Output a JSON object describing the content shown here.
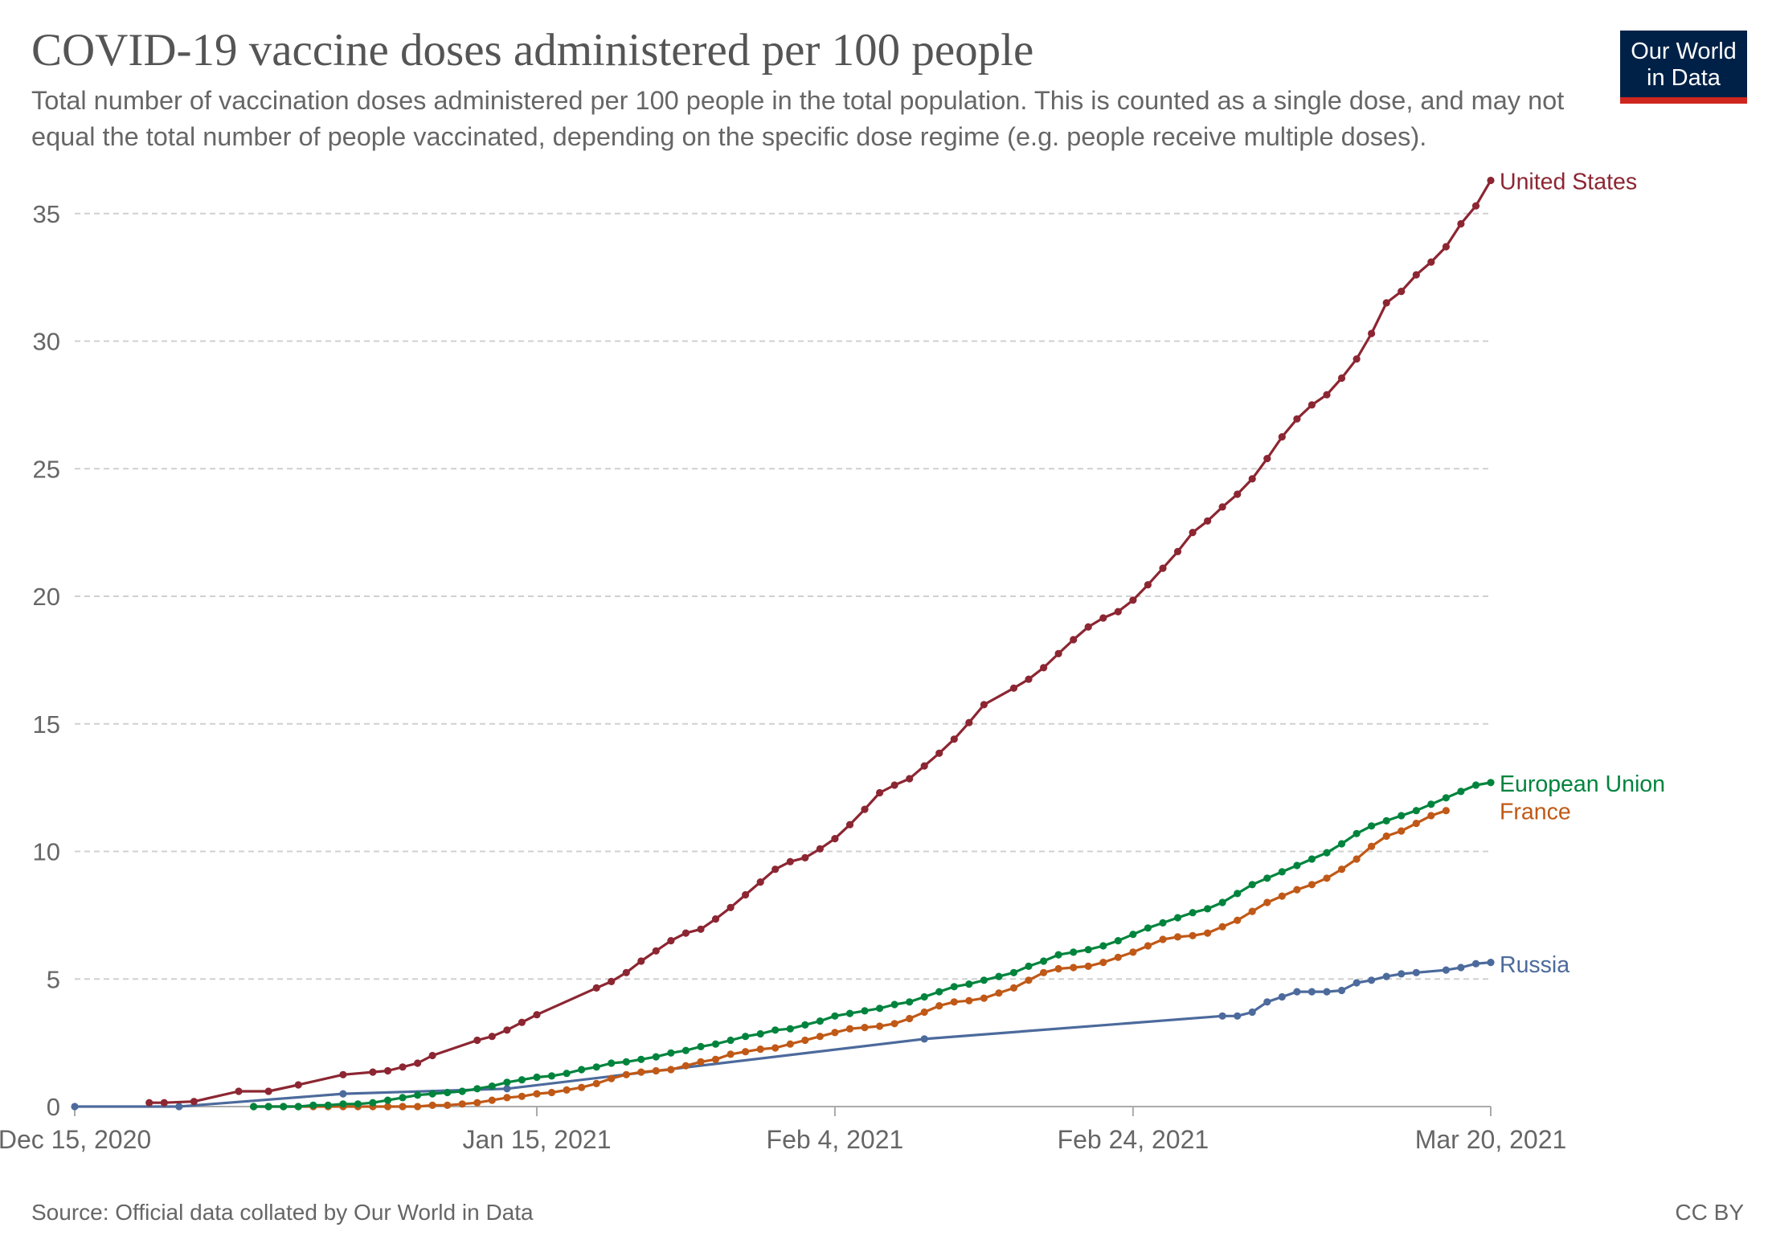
{
  "header": {
    "title": "COVID-19 vaccine doses administered per 100 people",
    "subtitle": "Total number of vaccination doses administered per 100 people in the total population. This is counted as a single dose, and may not equal the total number of people vaccinated, depending on the specific dose regime (e.g. people receive multiple doses).",
    "logo_line1": "Our World",
    "logo_line2": "in Data"
  },
  "footer": {
    "source": "Source: Official data collated by Our World in Data",
    "license": "CC BY"
  },
  "colors": {
    "united_states": "#8c2632",
    "european_union": "#00843d",
    "france": "#c05917",
    "russia": "#4c6a9c",
    "grid": "#d0d0d0",
    "axis_text": "#666666",
    "logo_bg": "#002147",
    "logo_bar": "#ce261e"
  },
  "chart_data": {
    "type": "line",
    "title": "COVID-19 vaccine doses administered per 100 people",
    "x_start_date": "2020-12-15",
    "x_end_date": "2021-03-20",
    "ylim": [
      0,
      36.5
    ],
    "yticks": [
      0,
      5,
      10,
      15,
      20,
      25,
      30,
      35
    ],
    "xticks": [
      {
        "day": 0,
        "label": "Dec 15, 2020"
      },
      {
        "day": 31,
        "label": "Jan 15, 2021"
      },
      {
        "day": 51,
        "label": "Feb 4, 2021"
      },
      {
        "day": 71,
        "label": "Feb 24, 2021"
      },
      {
        "day": 95,
        "label": "Mar 20, 2021"
      }
    ],
    "grid": true,
    "legend": "line-end labels",
    "series": [
      {
        "name": "United States",
        "color": "#8c2632",
        "label_y": 36.3,
        "points": [
          [
            5,
            0.15
          ],
          [
            6,
            0.15
          ],
          [
            8,
            0.2
          ],
          [
            11,
            0.6
          ],
          [
            13,
            0.6
          ],
          [
            15,
            0.85
          ],
          [
            18,
            1.25
          ],
          [
            20,
            1.35
          ],
          [
            21,
            1.4
          ],
          [
            22,
            1.55
          ],
          [
            23,
            1.7
          ],
          [
            24,
            2
          ],
          [
            27,
            2.6
          ],
          [
            28,
            2.75
          ],
          [
            29,
            3
          ],
          [
            30,
            3.3
          ],
          [
            31,
            3.6
          ],
          [
            35,
            4.65
          ],
          [
            36,
            4.9
          ],
          [
            37,
            5.25
          ],
          [
            38,
            5.7
          ],
          [
            39,
            6.1
          ],
          [
            40,
            6.5
          ],
          [
            41,
            6.8
          ],
          [
            42,
            6.95
          ],
          [
            43,
            7.35
          ],
          [
            44,
            7.8
          ],
          [
            45,
            8.3
          ],
          [
            46,
            8.8
          ],
          [
            47,
            9.3
          ],
          [
            48,
            9.6
          ],
          [
            49,
            9.75
          ],
          [
            50,
            10.1
          ],
          [
            51,
            10.5
          ],
          [
            52,
            11.05
          ],
          [
            53,
            11.65
          ],
          [
            54,
            12.3
          ],
          [
            55,
            12.6
          ],
          [
            56,
            12.85
          ],
          [
            57,
            13.35
          ],
          [
            58,
            13.85
          ],
          [
            59,
            14.4
          ],
          [
            60,
            15.05
          ],
          [
            61,
            15.75
          ],
          [
            63,
            16.4
          ],
          [
            64,
            16.75
          ],
          [
            65,
            17.2
          ],
          [
            66,
            17.75
          ],
          [
            67,
            18.3
          ],
          [
            68,
            18.8
          ],
          [
            69,
            19.15
          ],
          [
            70,
            19.4
          ],
          [
            71,
            19.85
          ],
          [
            72,
            20.45
          ],
          [
            73,
            21.1
          ],
          [
            74,
            21.75
          ],
          [
            75,
            22.5
          ],
          [
            76,
            22.95
          ],
          [
            77,
            23.5
          ],
          [
            78,
            24
          ],
          [
            79,
            24.6
          ],
          [
            80,
            25.4
          ],
          [
            81,
            26.25
          ],
          [
            82,
            26.95
          ],
          [
            83,
            27.5
          ],
          [
            84,
            27.9
          ],
          [
            85,
            28.55
          ],
          [
            86,
            29.3
          ],
          [
            87,
            30.3
          ],
          [
            88,
            31.5
          ],
          [
            89,
            31.95
          ],
          [
            90,
            32.6
          ],
          [
            91,
            33.1
          ],
          [
            92,
            33.7
          ],
          [
            93,
            34.6
          ],
          [
            94,
            35.3
          ],
          [
            95,
            36.3
          ]
        ]
      },
      {
        "name": "European Union",
        "color": "#00843d",
        "label_y": 12.7,
        "points": [
          [
            12,
            0
          ],
          [
            13,
            0
          ],
          [
            14,
            0
          ],
          [
            15,
            0
          ],
          [
            16,
            0.05
          ],
          [
            17,
            0.05
          ],
          [
            18,
            0.1
          ],
          [
            19,
            0.1
          ],
          [
            20,
            0.15
          ],
          [
            21,
            0.25
          ],
          [
            22,
            0.35
          ],
          [
            23,
            0.45
          ],
          [
            24,
            0.5
          ],
          [
            25,
            0.55
          ],
          [
            26,
            0.6
          ],
          [
            27,
            0.7
          ],
          [
            28,
            0.8
          ],
          [
            29,
            0.95
          ],
          [
            30,
            1.05
          ],
          [
            31,
            1.15
          ],
          [
            32,
            1.2
          ],
          [
            33,
            1.3
          ],
          [
            34,
            1.45
          ],
          [
            35,
            1.55
          ],
          [
            36,
            1.7
          ],
          [
            37,
            1.75
          ],
          [
            38,
            1.85
          ],
          [
            39,
            1.95
          ],
          [
            40,
            2.1
          ],
          [
            41,
            2.2
          ],
          [
            42,
            2.35
          ],
          [
            43,
            2.45
          ],
          [
            44,
            2.6
          ],
          [
            45,
            2.75
          ],
          [
            46,
            2.85
          ],
          [
            47,
            3
          ],
          [
            48,
            3.05
          ],
          [
            49,
            3.2
          ],
          [
            50,
            3.35
          ],
          [
            51,
            3.55
          ],
          [
            52,
            3.65
          ],
          [
            53,
            3.75
          ],
          [
            54,
            3.85
          ],
          [
            55,
            4
          ],
          [
            56,
            4.1
          ],
          [
            57,
            4.3
          ],
          [
            58,
            4.5
          ],
          [
            59,
            4.7
          ],
          [
            60,
            4.8
          ],
          [
            61,
            4.95
          ],
          [
            62,
            5.1
          ],
          [
            63,
            5.25
          ],
          [
            64,
            5.5
          ],
          [
            65,
            5.7
          ],
          [
            66,
            5.95
          ],
          [
            67,
            6.05
          ],
          [
            68,
            6.15
          ],
          [
            69,
            6.3
          ],
          [
            70,
            6.5
          ],
          [
            71,
            6.75
          ],
          [
            72,
            7
          ],
          [
            73,
            7.2
          ],
          [
            74,
            7.4
          ],
          [
            75,
            7.6
          ],
          [
            76,
            7.75
          ],
          [
            77,
            8
          ],
          [
            78,
            8.35
          ],
          [
            79,
            8.7
          ],
          [
            80,
            8.95
          ],
          [
            81,
            9.2
          ],
          [
            82,
            9.45
          ],
          [
            83,
            9.7
          ],
          [
            84,
            9.95
          ],
          [
            85,
            10.3
          ],
          [
            86,
            10.7
          ],
          [
            87,
            11
          ],
          [
            88,
            11.2
          ],
          [
            89,
            11.4
          ],
          [
            90,
            11.6
          ],
          [
            91,
            11.85
          ],
          [
            92,
            12.1
          ],
          [
            93,
            12.35
          ],
          [
            94,
            12.6
          ],
          [
            95,
            12.7
          ]
        ]
      },
      {
        "name": "France",
        "color": "#c05917",
        "label_y": 11.6,
        "points": [
          [
            12,
            0
          ],
          [
            13,
            0
          ],
          [
            14,
            0
          ],
          [
            15,
            0
          ],
          [
            16,
            0
          ],
          [
            17,
            0
          ],
          [
            18,
            0
          ],
          [
            19,
            0
          ],
          [
            20,
            0
          ],
          [
            21,
            0
          ],
          [
            22,
            0
          ],
          [
            23,
            0
          ],
          [
            24,
            0.05
          ],
          [
            25,
            0.05
          ],
          [
            26,
            0.1
          ],
          [
            27,
            0.15
          ],
          [
            28,
            0.25
          ],
          [
            29,
            0.35
          ],
          [
            30,
            0.4
          ],
          [
            31,
            0.5
          ],
          [
            32,
            0.55
          ],
          [
            33,
            0.65
          ],
          [
            34,
            0.75
          ],
          [
            35,
            0.9
          ],
          [
            36,
            1.1
          ],
          [
            37,
            1.25
          ],
          [
            38,
            1.35
          ],
          [
            39,
            1.4
          ],
          [
            40,
            1.45
          ],
          [
            41,
            1.6
          ],
          [
            42,
            1.75
          ],
          [
            43,
            1.85
          ],
          [
            44,
            2.05
          ],
          [
            45,
            2.15
          ],
          [
            46,
            2.25
          ],
          [
            47,
            2.3
          ],
          [
            48,
            2.45
          ],
          [
            49,
            2.6
          ],
          [
            50,
            2.75
          ],
          [
            51,
            2.9
          ],
          [
            52,
            3.05
          ],
          [
            53,
            3.1
          ],
          [
            54,
            3.15
          ],
          [
            55,
            3.25
          ],
          [
            56,
            3.45
          ],
          [
            57,
            3.7
          ],
          [
            58,
            3.95
          ],
          [
            59,
            4.1
          ],
          [
            60,
            4.15
          ],
          [
            61,
            4.25
          ],
          [
            62,
            4.45
          ],
          [
            63,
            4.65
          ],
          [
            64,
            4.95
          ],
          [
            65,
            5.25
          ],
          [
            66,
            5.4
          ],
          [
            67,
            5.45
          ],
          [
            68,
            5.5
          ],
          [
            69,
            5.65
          ],
          [
            70,
            5.85
          ],
          [
            71,
            6.05
          ],
          [
            72,
            6.3
          ],
          [
            73,
            6.55
          ],
          [
            74,
            6.65
          ],
          [
            75,
            6.7
          ],
          [
            76,
            6.8
          ],
          [
            77,
            7.05
          ],
          [
            78,
            7.3
          ],
          [
            79,
            7.65
          ],
          [
            80,
            8
          ],
          [
            81,
            8.25
          ],
          [
            82,
            8.5
          ],
          [
            83,
            8.7
          ],
          [
            84,
            8.95
          ],
          [
            85,
            9.3
          ],
          [
            86,
            9.7
          ],
          [
            87,
            10.2
          ],
          [
            88,
            10.6
          ],
          [
            89,
            10.8
          ],
          [
            90,
            11.1
          ],
          [
            91,
            11.4
          ],
          [
            92,
            11.6
          ]
        ]
      },
      {
        "name": "Russia",
        "color": "#4c6a9c",
        "label_y": 5.6,
        "points": [
          [
            0,
            0
          ],
          [
            7,
            0
          ],
          [
            18,
            0.5
          ],
          [
            29,
            0.7
          ],
          [
            57,
            2.65
          ],
          [
            77,
            3.55
          ],
          [
            78,
            3.55
          ],
          [
            79,
            3.7
          ],
          [
            80,
            4.1
          ],
          [
            81,
            4.3
          ],
          [
            82,
            4.5
          ],
          [
            83,
            4.5
          ],
          [
            84,
            4.5
          ],
          [
            85,
            4.55
          ],
          [
            86,
            4.85
          ],
          [
            87,
            4.95
          ],
          [
            88,
            5.1
          ],
          [
            89,
            5.2
          ],
          [
            90,
            5.25
          ],
          [
            92,
            5.35
          ],
          [
            93,
            5.45
          ],
          [
            94,
            5.6
          ],
          [
            95,
            5.65
          ]
        ]
      }
    ]
  }
}
